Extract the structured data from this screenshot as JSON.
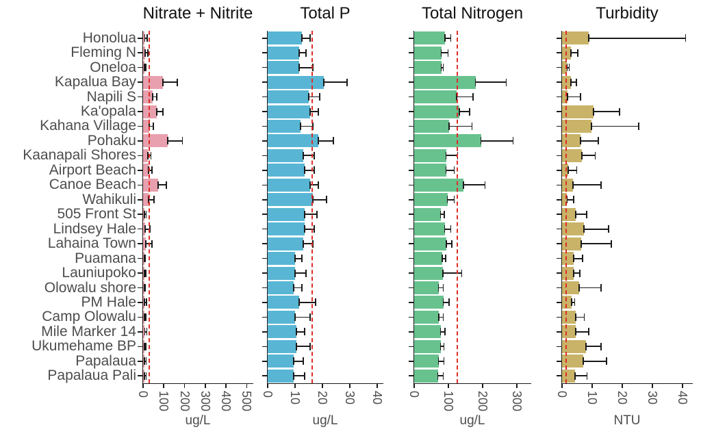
{
  "colors": {
    "axis_text": "#4d4d4d",
    "title_text": "#111111",
    "axis_line": "#1a1a1a",
    "error_bar": "#1a1a1a",
    "ref_line": "#de2d26"
  },
  "chart_data": [
    {
      "type": "bar",
      "orientation": "horizontal",
      "title": "Nitrate + Nitrite",
      "xlabel": "ug/L",
      "bar_color": "#e8a0ae",
      "ref_line": 25,
      "xlim": [
        0,
        535
      ],
      "xticks": [
        0,
        100,
        200,
        300,
        400,
        500
      ],
      "categories": [
        "Honolua",
        "Fleming N",
        "Oneloa",
        "Kapalua Bay",
        "Napili S",
        "Ka'opala",
        "Kahana Village",
        "Pohaku",
        "Kaanapali Shores",
        "Airport Beach",
        "Canoe Beach",
        "Wahikuli",
        "505 Front St",
        "Lindsey Hale",
        "Lahaina Town",
        "Puamana",
        "Launiupoko",
        "Olowalu shore",
        "PM Hale",
        "Camp Olowalu",
        "Mile Marker 14",
        "Ukumehame BP",
        "Papalaua",
        "Papalaua Pali"
      ],
      "values": [
        8,
        10,
        6,
        95,
        45,
        65,
        30,
        120,
        22,
        27,
        73,
        27,
        6,
        10,
        12,
        5,
        6,
        5,
        7,
        6,
        8,
        6,
        7,
        7
      ],
      "errors_upper": [
        20,
        22,
        12,
        165,
        65,
        95,
        50,
        190,
        38,
        42,
        112,
        52,
        15,
        32,
        42,
        10,
        14,
        11,
        16,
        13,
        18,
        13,
        15,
        15
      ]
    },
    {
      "type": "bar",
      "orientation": "horizontal",
      "title": "Total P",
      "xlabel": "ug/L",
      "bar_color": "#58b6d4",
      "ref_line": 16,
      "xlim": [
        0,
        42.5
      ],
      "xticks": [
        0,
        10,
        20,
        30,
        40
      ],
      "categories": [
        "Honolua",
        "Fleming N",
        "Oneloa",
        "Kapalua Bay",
        "Napili S",
        "Ka'opala",
        "Kahana Village",
        "Pohaku",
        "Kaanapali Shores",
        "Airport Beach",
        "Canoe Beach",
        "Wahikuli",
        "505 Front St",
        "Lindsey Hale",
        "Lahaina Town",
        "Puamana",
        "Launiupoko",
        "Olowalu shore",
        "PM Hale",
        "Camp Olowalu",
        "Mile Marker 14",
        "Ukumehame BP",
        "Papalaua",
        "Papalaua Pali"
      ],
      "values": [
        12.5,
        11.5,
        11.5,
        20.5,
        15,
        15.5,
        12,
        18.5,
        13,
        13.5,
        15.5,
        16.5,
        13.5,
        13.5,
        13,
        10,
        10,
        9.5,
        11.5,
        10,
        10.5,
        10.5,
        9.5,
        9.5
      ],
      "errors_upper": [
        15.5,
        14,
        16.5,
        29,
        19,
        18.5,
        16.5,
        24,
        17,
        17,
        18.5,
        21.5,
        18,
        17,
        16.5,
        12.5,
        14,
        12.5,
        17.5,
        15.5,
        13.5,
        15.5,
        13,
        13.5
      ]
    },
    {
      "type": "bar",
      "orientation": "horizontal",
      "title": "Total Nitrogen",
      "xlabel": "ug/L",
      "bar_color": "#68c28e",
      "ref_line": 124,
      "xlim": [
        0,
        344
      ],
      "xticks": [
        0,
        100,
        200,
        300
      ],
      "categories": [
        "Honolua",
        "Fleming N",
        "Oneloa",
        "Kapalua Bay",
        "Napili S",
        "Ka'opala",
        "Kahana Village",
        "Pohaku",
        "Kaanapali Shores",
        "Airport Beach",
        "Canoe Beach",
        "Wahikuli",
        "505 Front St",
        "Lindsey Hale",
        "Lahaina Town",
        "Puamana",
        "Launiupoko",
        "Olowalu shore",
        "PM Hale",
        "Camp Olowalu",
        "Mile Marker 14",
        "Ukumehame BP",
        "Papalaua",
        "Papalaua Pali"
      ],
      "values": [
        90,
        79,
        79,
        179,
        124,
        132,
        102,
        195,
        93,
        93,
        144,
        97,
        77,
        89,
        94,
        82,
        84,
        71,
        85,
        72,
        77,
        77,
        71,
        69
      ],
      "errors_upper": [
        107,
        99,
        85,
        269,
        172,
        162,
        169,
        289,
        127,
        117,
        207,
        117,
        88,
        107,
        110,
        92,
        139,
        85,
        102,
        85,
        90,
        87,
        87,
        85
      ]
    },
    {
      "type": "bar",
      "orientation": "horizontal",
      "title": "Turbidity",
      "xlabel": "NTU",
      "bar_color": "#c9b368",
      "ref_line": 1.2,
      "xlim": [
        0,
        43.6
      ],
      "xticks": [
        0,
        10,
        20,
        30,
        40
      ],
      "categories": [
        "Honolua",
        "Fleming N",
        "Oneloa",
        "Kapalua Bay",
        "Napili S",
        "Ka'opala",
        "Kahana Village",
        "Pohaku",
        "Kaanapali Shores",
        "Airport Beach",
        "Canoe Beach",
        "Wahikuli",
        "505 Front St",
        "Lindsey Hale",
        "Lahaina Town",
        "Puamana",
        "Launiupoko",
        "Olowalu shore",
        "PM Hale",
        "Camp Olowalu",
        "Mile Marker 14",
        "Ukumehame BP",
        "Papalaua",
        "Papalaua Pali"
      ],
      "values": [
        8.9,
        3.0,
        1.7,
        3.0,
        1.9,
        10.5,
        9.7,
        6.1,
        6.6,
        2.1,
        3.6,
        1.7,
        4.5,
        7.3,
        6.4,
        3.8,
        3.9,
        5.7,
        3.2,
        4.5,
        4.5,
        8.0,
        7.0,
        4.4
      ],
      "errors_upper": [
        41,
        5.2,
        2.4,
        4.7,
        6.2,
        19,
        25.5,
        12,
        11,
        4.9,
        13,
        3.8,
        8.1,
        15.5,
        16.3,
        6.8,
        5.9,
        13,
        4.2,
        7.4,
        8.9,
        13,
        14.8,
        8.3
      ]
    }
  ]
}
